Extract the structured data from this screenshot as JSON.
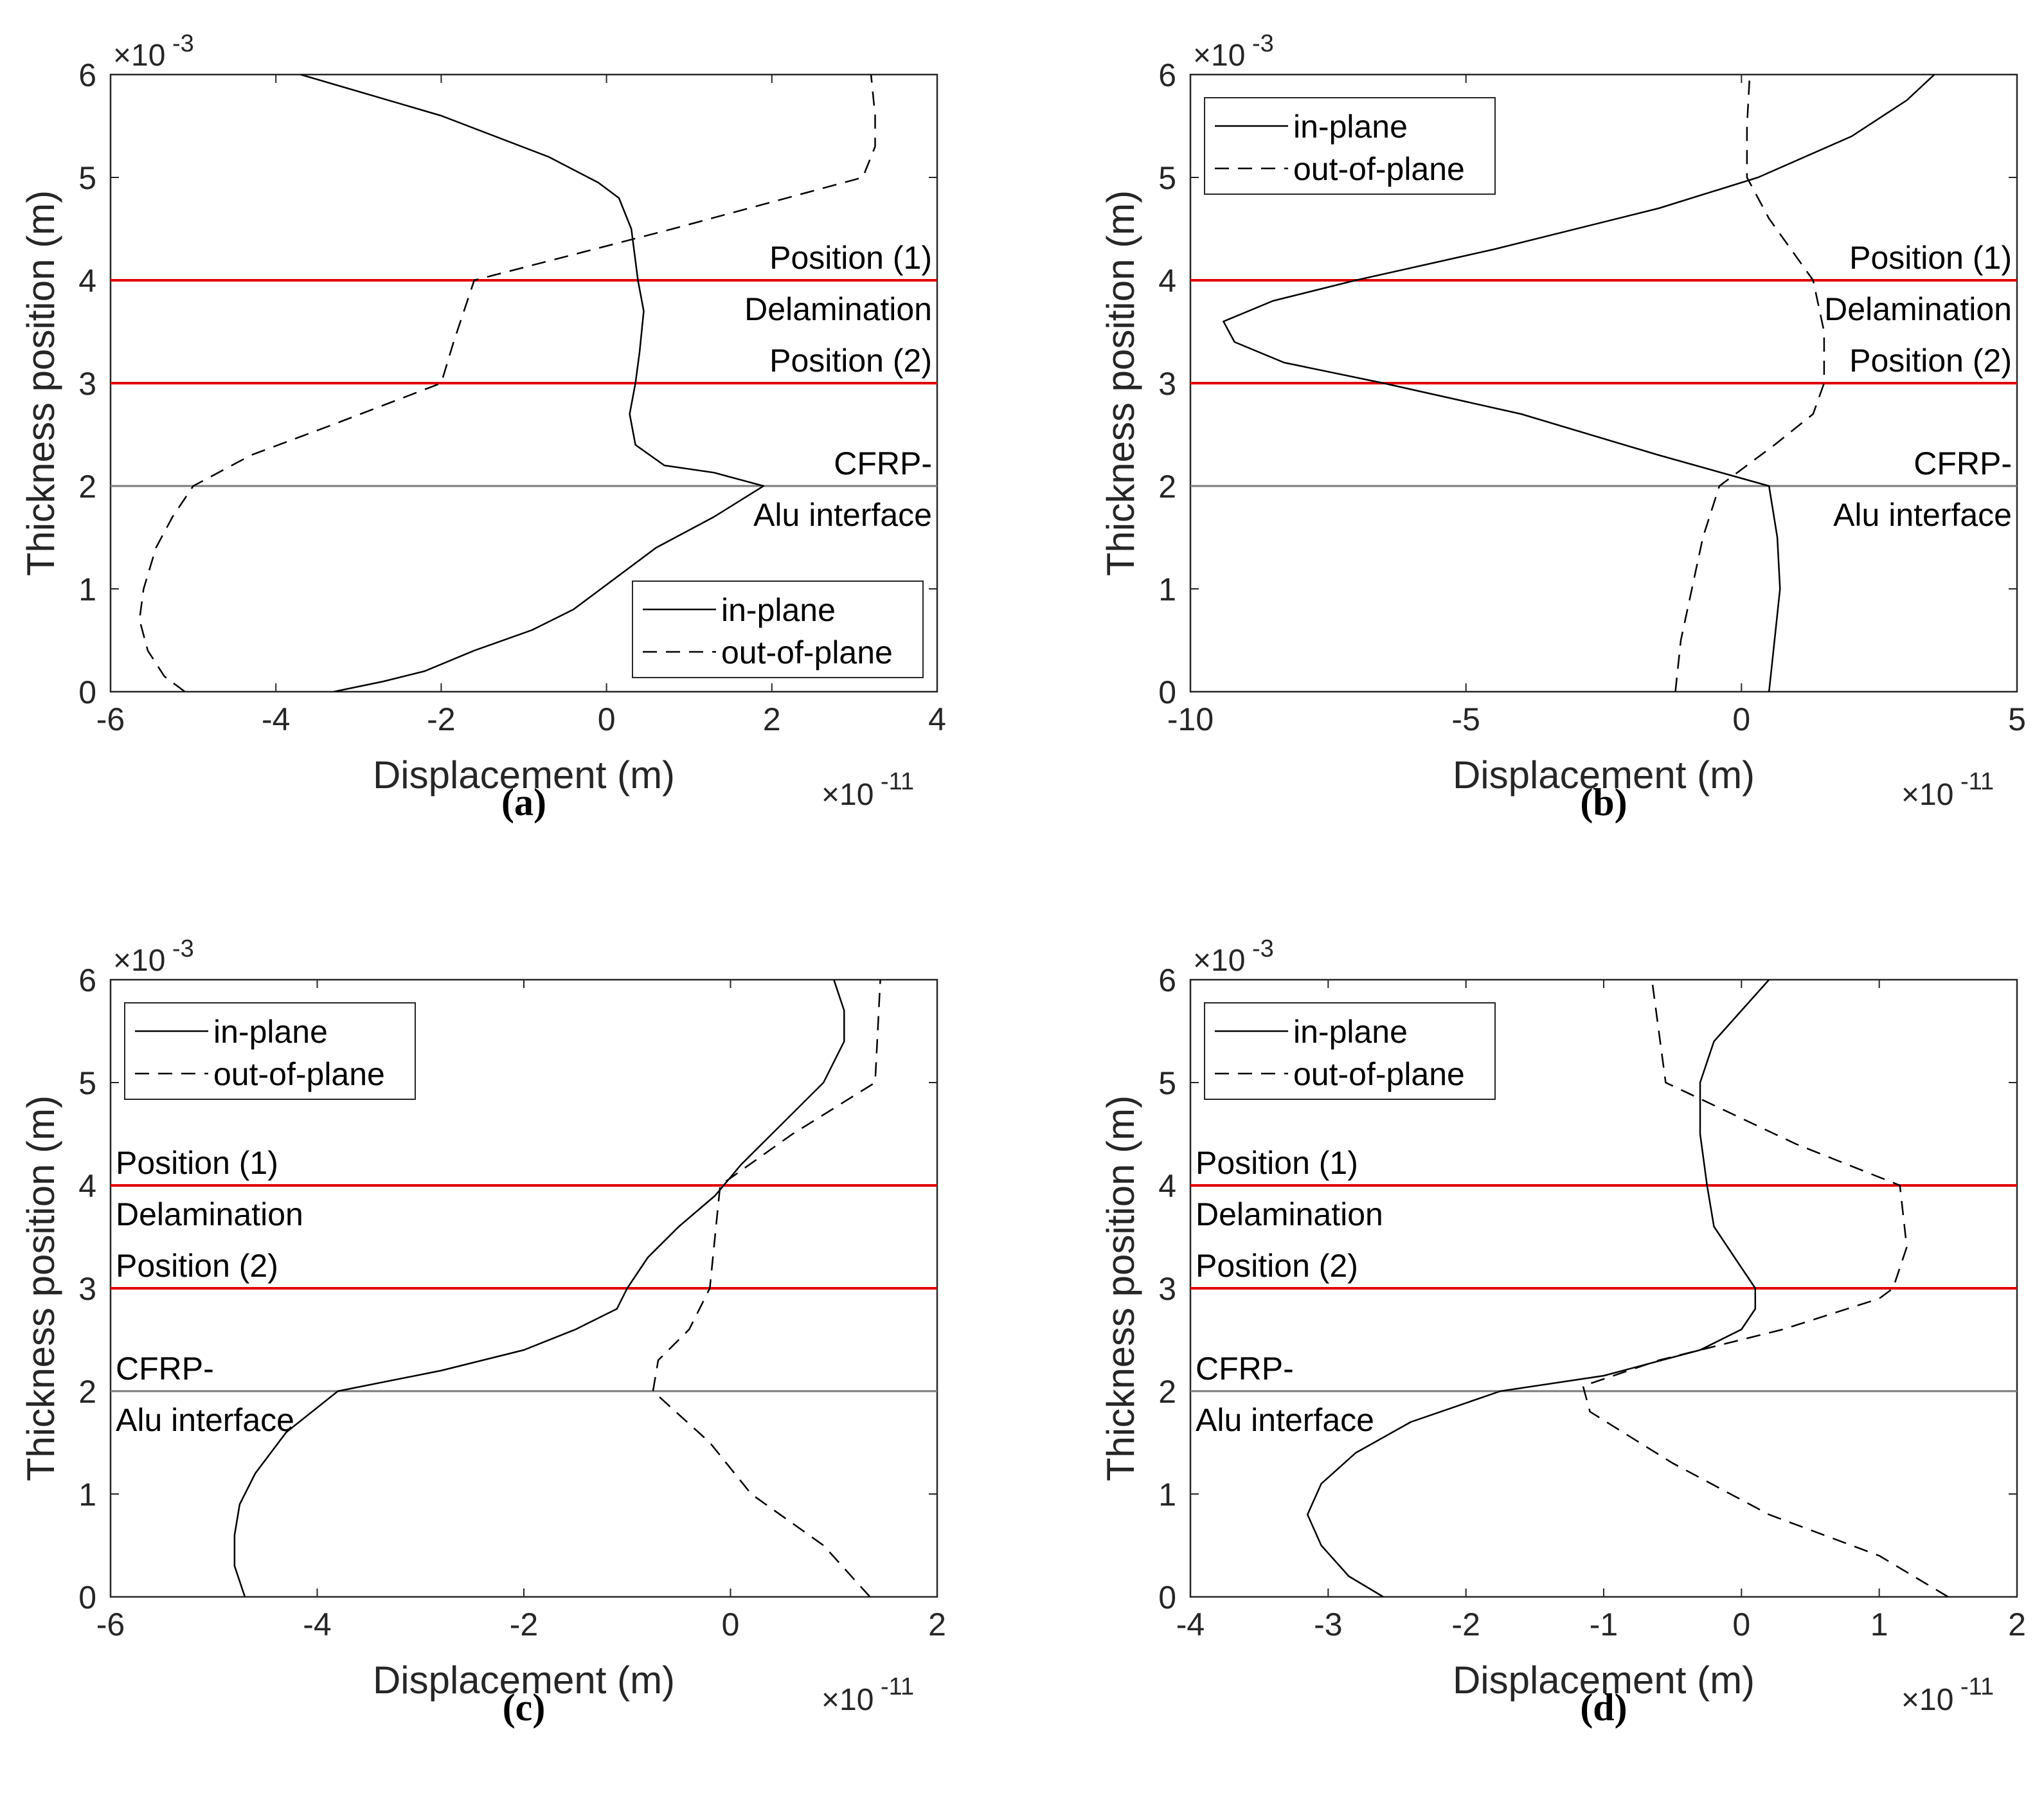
{
  "figure": {
    "panels": [
      "(a)",
      "(b)",
      "(c)",
      "(d)"
    ]
  },
  "colors": {
    "axis": "#262626",
    "curve": "#000000",
    "marker": "#e00000",
    "interface": "#7a7a7a",
    "background": "#ffffff"
  },
  "chart_data": [
    {
      "id": "a",
      "type": "line",
      "caption": "(a)",
      "xlabel": "Displacement (m)",
      "ylabel": "Thickness position (m)",
      "x_multiplier": "×10",
      "x_exponent": "-11",
      "y_multiplier": "×10",
      "y_exponent": "-3",
      "xlim": [
        -6,
        4
      ],
      "ylim": [
        0,
        6
      ],
      "xticks": [
        -6,
        -4,
        -2,
        0,
        2,
        4
      ],
      "yticks": [
        0,
        1,
        2,
        3,
        4,
        5,
        6
      ],
      "legend": {
        "location": "bottom-right",
        "entries": [
          "in-plane",
          "out-of-plane"
        ]
      },
      "text_side": "right",
      "reference_lines": [
        {
          "y": 4,
          "color": "red",
          "labels": [
            "Position (1)",
            "Delamination"
          ]
        },
        {
          "y": 3,
          "color": "red",
          "labels": [
            "Position (2)"
          ]
        },
        {
          "y": 2,
          "color": "gray",
          "labels": [
            "CFRP-",
            "Alu interface"
          ]
        }
      ],
      "series": [
        {
          "name": "in-plane",
          "style": "solid",
          "points": [
            [
              -3.3,
              0
            ],
            [
              -2.7,
              0.1
            ],
            [
              -2.2,
              0.2
            ],
            [
              -1.6,
              0.4
            ],
            [
              -0.9,
              0.6
            ],
            [
              -0.4,
              0.8
            ],
            [
              0.1,
              1.1
            ],
            [
              0.6,
              1.4
            ],
            [
              1.3,
              1.7
            ],
            [
              1.9,
              2.0
            ],
            [
              1.3,
              2.13
            ],
            [
              0.7,
              2.2
            ],
            [
              0.35,
              2.4
            ],
            [
              0.28,
              2.7
            ],
            [
              0.35,
              3.0
            ],
            [
              0.4,
              3.3
            ],
            [
              0.45,
              3.7
            ],
            [
              0.38,
              4.0
            ],
            [
              0.3,
              4.5
            ],
            [
              0.15,
              4.8
            ],
            [
              -0.1,
              4.95
            ],
            [
              -0.7,
              5.2
            ],
            [
              -2.0,
              5.6
            ],
            [
              -3.7,
              6.0
            ]
          ]
        },
        {
          "name": "out-of-plane",
          "style": "dashed",
          "points": [
            [
              -5.1,
              0
            ],
            [
              -5.35,
              0.15
            ],
            [
              -5.55,
              0.4
            ],
            [
              -5.65,
              0.7
            ],
            [
              -5.6,
              1.0
            ],
            [
              -5.45,
              1.4
            ],
            [
              -5.25,
              1.7
            ],
            [
              -5.0,
              2.0
            ],
            [
              -4.3,
              2.3
            ],
            [
              -3.3,
              2.6
            ],
            [
              -2.0,
              3.0
            ],
            [
              -1.85,
              3.4
            ],
            [
              -1.6,
              4.0
            ],
            [
              0.8,
              4.5
            ],
            [
              3.1,
              5.0
            ],
            [
              3.25,
              5.3
            ],
            [
              3.25,
              5.6
            ],
            [
              3.2,
              6.0
            ]
          ]
        }
      ]
    },
    {
      "id": "b",
      "type": "line",
      "caption": "(b)",
      "xlabel": "Displacement (m)",
      "ylabel": "Thickness position (m)",
      "x_multiplier": "×10",
      "x_exponent": "-11",
      "y_multiplier": "×10",
      "y_exponent": "-3",
      "xlim": [
        -10,
        5
      ],
      "ylim": [
        0,
        6
      ],
      "xticks": [
        -10,
        -5,
        0,
        5
      ],
      "yticks": [
        0,
        1,
        2,
        3,
        4,
        5,
        6
      ],
      "legend": {
        "location": "top-left",
        "entries": [
          "in-plane",
          "out-of-plane"
        ]
      },
      "text_side": "right",
      "reference_lines": [
        {
          "y": 4,
          "color": "red",
          "labels": [
            "Position (1)",
            "Delamination"
          ]
        },
        {
          "y": 3,
          "color": "red",
          "labels": [
            "Position (2)"
          ]
        },
        {
          "y": 2,
          "color": "gray",
          "labels": [
            "CFRP-",
            "Alu interface"
          ]
        }
      ],
      "series": [
        {
          "name": "in-plane",
          "style": "solid",
          "points": [
            [
              0.5,
              0
            ],
            [
              0.6,
              0.5
            ],
            [
              0.7,
              1.0
            ],
            [
              0.65,
              1.5
            ],
            [
              0.5,
              2.0
            ],
            [
              -1.5,
              2.3
            ],
            [
              -4.0,
              2.7
            ],
            [
              -6.5,
              3.0
            ],
            [
              -8.3,
              3.2
            ],
            [
              -9.2,
              3.4
            ],
            [
              -9.4,
              3.6
            ],
            [
              -8.5,
              3.8
            ],
            [
              -7.0,
              4.0
            ],
            [
              -4.5,
              4.3
            ],
            [
              -1.5,
              4.7
            ],
            [
              0.3,
              5.0
            ],
            [
              2.0,
              5.4
            ],
            [
              3.0,
              5.75
            ],
            [
              3.5,
              6.0
            ]
          ]
        },
        {
          "name": "out-of-plane",
          "style": "dashed",
          "points": [
            [
              -1.2,
              0
            ],
            [
              -1.1,
              0.5
            ],
            [
              -0.9,
              1.0
            ],
            [
              -0.7,
              1.5
            ],
            [
              -0.4,
              2.0
            ],
            [
              0.6,
              2.4
            ],
            [
              1.3,
              2.7
            ],
            [
              1.5,
              3.0
            ],
            [
              1.5,
              3.5
            ],
            [
              1.3,
              4.0
            ],
            [
              0.5,
              4.6
            ],
            [
              0.1,
              5.0
            ],
            [
              0.1,
              5.5
            ],
            [
              0.15,
              6.0
            ]
          ]
        }
      ]
    },
    {
      "id": "c",
      "type": "line",
      "caption": "(c)",
      "xlabel": "Displacement (m)",
      "ylabel": "Thickness position (m)",
      "x_multiplier": "×10",
      "x_exponent": "-11",
      "y_multiplier": "×10",
      "y_exponent": "-3",
      "xlim": [
        -6,
        2
      ],
      "ylim": [
        0,
        6
      ],
      "xticks": [
        -6,
        -4,
        -2,
        0,
        2
      ],
      "yticks": [
        0,
        1,
        2,
        3,
        4,
        5,
        6
      ],
      "legend": {
        "location": "top-left",
        "entries": [
          "in-plane",
          "out-of-plane"
        ]
      },
      "text_side": "left",
      "reference_lines": [
        {
          "y": 4,
          "color": "red",
          "labels": [
            "Position (1)",
            "Delamination"
          ]
        },
        {
          "y": 3,
          "color": "red",
          "labels": [
            "Position (2)"
          ]
        },
        {
          "y": 2,
          "color": "gray",
          "labels": [
            "CFRP-",
            "Alu interface"
          ]
        }
      ],
      "series": [
        {
          "name": "in-plane",
          "style": "solid",
          "points": [
            [
              -4.7,
              0
            ],
            [
              -4.8,
              0.3
            ],
            [
              -4.8,
              0.6
            ],
            [
              -4.75,
              0.9
            ],
            [
              -4.6,
              1.2
            ],
            [
              -4.3,
              1.6
            ],
            [
              -3.8,
              2.0
            ],
            [
              -2.8,
              2.2
            ],
            [
              -2.0,
              2.4
            ],
            [
              -1.5,
              2.6
            ],
            [
              -1.1,
              2.8
            ],
            [
              -1.0,
              3.0
            ],
            [
              -0.8,
              3.3
            ],
            [
              -0.5,
              3.6
            ],
            [
              -0.15,
              3.9
            ],
            [
              0.1,
              4.2
            ],
            [
              0.5,
              4.6
            ],
            [
              0.9,
              5.0
            ],
            [
              1.1,
              5.4
            ],
            [
              1.1,
              5.7
            ],
            [
              1.0,
              6.0
            ]
          ]
        },
        {
          "name": "out-of-plane",
          "style": "dashed",
          "points": [
            [
              1.35,
              0
            ],
            [
              0.9,
              0.5
            ],
            [
              0.2,
              1.0
            ],
            [
              -0.2,
              1.5
            ],
            [
              -0.75,
              2.0
            ],
            [
              -0.7,
              2.3
            ],
            [
              -0.4,
              2.6
            ],
            [
              -0.2,
              3.0
            ],
            [
              -0.1,
              4.0
            ],
            [
              0.6,
              4.5
            ],
            [
              1.4,
              5.0
            ],
            [
              1.45,
              6.0
            ]
          ]
        }
      ]
    },
    {
      "id": "d",
      "type": "line",
      "caption": "(d)",
      "xlabel": "Displacement (m)",
      "ylabel": "Thickness position (m)",
      "x_multiplier": "×10",
      "x_exponent": "-11",
      "y_multiplier": "×10",
      "y_exponent": "-3",
      "xlim": [
        -4,
        2
      ],
      "ylim": [
        0,
        6
      ],
      "xticks": [
        -4,
        -3,
        -2,
        -1,
        0,
        1,
        2
      ],
      "yticks": [
        0,
        1,
        2,
        3,
        4,
        5,
        6
      ],
      "legend": {
        "location": "top-left",
        "entries": [
          "in-plane",
          "out-of-plane"
        ]
      },
      "text_side": "left",
      "reference_lines": [
        {
          "y": 4,
          "color": "red",
          "labels": [
            "Position (1)",
            "Delamination"
          ]
        },
        {
          "y": 3,
          "color": "red",
          "labels": [
            "Position (2)"
          ]
        },
        {
          "y": 2,
          "color": "gray",
          "labels": [
            "CFRP-",
            "Alu interface"
          ]
        }
      ],
      "series": [
        {
          "name": "in-plane",
          "style": "solid",
          "points": [
            [
              -2.6,
              0
            ],
            [
              -2.85,
              0.2
            ],
            [
              -3.05,
              0.5
            ],
            [
              -3.15,
              0.8
            ],
            [
              -3.05,
              1.1
            ],
            [
              -2.8,
              1.4
            ],
            [
              -2.4,
              1.7
            ],
            [
              -1.75,
              2.0
            ],
            [
              -1.0,
              2.15
            ],
            [
              -0.3,
              2.4
            ],
            [
              0.0,
              2.6
            ],
            [
              0.1,
              2.8
            ],
            [
              0.1,
              3.0
            ],
            [
              -0.05,
              3.3
            ],
            [
              -0.2,
              3.6
            ],
            [
              -0.25,
              4.0
            ],
            [
              -0.3,
              4.5
            ],
            [
              -0.3,
              5.0
            ],
            [
              -0.2,
              5.4
            ],
            [
              0.0,
              5.7
            ],
            [
              0.2,
              6.0
            ]
          ]
        },
        {
          "name": "out-of-plane",
          "style": "dashed",
          "points": [
            [
              1.5,
              0
            ],
            [
              1.0,
              0.4
            ],
            [
              0.2,
              0.8
            ],
            [
              -0.5,
              1.3
            ],
            [
              -1.1,
              1.8
            ],
            [
              -1.15,
              2.05
            ],
            [
              -0.6,
              2.3
            ],
            [
              0.3,
              2.6
            ],
            [
              1.0,
              2.9
            ],
            [
              1.1,
              3.0
            ],
            [
              1.2,
              3.4
            ],
            [
              1.15,
              4.0
            ],
            [
              0.4,
              4.4
            ],
            [
              -0.55,
              5.0
            ],
            [
              -0.6,
              5.5
            ],
            [
              -0.65,
              6.0
            ]
          ]
        }
      ]
    }
  ]
}
